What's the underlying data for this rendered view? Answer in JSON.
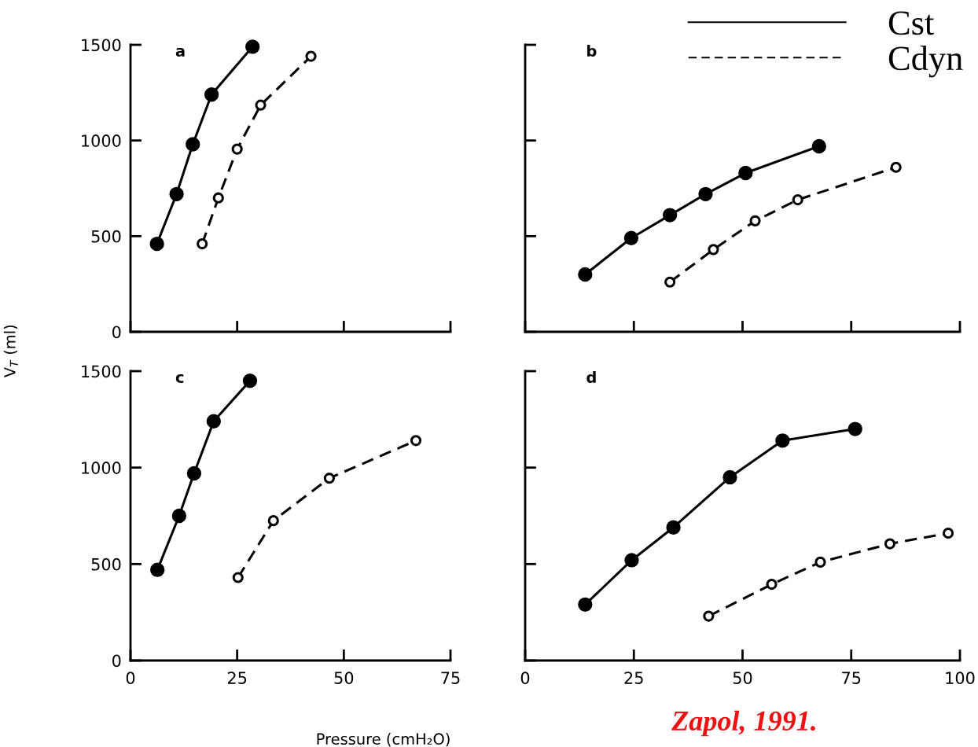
{
  "chart_data": [
    {
      "type": "line",
      "title": "a",
      "xlim": [
        0,
        75
      ],
      "xticks": [
        0,
        25,
        50,
        75
      ],
      "ylim": [
        0,
        1500
      ],
      "yticks": [
        0,
        500,
        1000,
        1500
      ],
      "tick_labels": "y",
      "marker": "circle",
      "series": [
        {
          "color": "#000000",
          "line_style": "solid",
          "x": [
            6.2,
            10.8,
            14.6,
            19.0,
            28.6
          ],
          "values": [
            460,
            720,
            980,
            1240,
            1490
          ]
        },
        {
          "color": "#000000",
          "line_style": "dashed",
          "x": [
            16.8,
            20.6,
            25.0,
            30.5,
            42.3
          ],
          "values": [
            460,
            700,
            955,
            1185,
            1440
          ]
        }
      ]
    },
    {
      "type": "line",
      "title": "b",
      "xlim": [
        0,
        100
      ],
      "xticks": [
        0,
        25,
        50,
        75,
        100
      ],
      "ylim": [
        0,
        1500
      ],
      "yticks": [
        0,
        500,
        1000,
        1500
      ],
      "tick_labels": false,
      "marker": "circle",
      "legend": "top right",
      "series": [
        {
          "name": "Cst",
          "color": "#000000",
          "line_style": "solid",
          "x": [
            13.8,
            24.4,
            33.3,
            41.5,
            50.7,
            67.6
          ],
          "values": [
            300,
            490,
            610,
            720,
            830,
            970
          ]
        },
        {
          "name": "Cdyn",
          "color": "#000000",
          "line_style": "dashed",
          "x": [
            33.3,
            43.3,
            52.9,
            62.7,
            85.3
          ],
          "values": [
            260,
            430,
            580,
            690,
            860
          ]
        }
      ]
    },
    {
      "type": "line",
      "title": "c",
      "ylabel": "V$_{T}$ (ml)",
      "xlabel": "Pressure (cmH₂O)",
      "xlim": [
        0,
        75
      ],
      "xticks": [
        0,
        25,
        50,
        75
      ],
      "ylim": [
        0,
        1500
      ],
      "yticks": [
        0,
        500,
        1000,
        1500
      ],
      "marker": "circle",
      "series": [
        {
          "color": "#000000",
          "line_style": "solid",
          "x": [
            6.3,
            11.4,
            14.9,
            19.5,
            28.0
          ],
          "values": [
            470,
            750,
            970,
            1240,
            1450
          ]
        },
        {
          "color": "#000000",
          "line_style": "dashed",
          "x": [
            25.2,
            33.5,
            46.6,
            66.9
          ],
          "values": [
            430,
            725,
            945,
            1140
          ]
        }
      ]
    },
    {
      "type": "line",
      "title": "d",
      "xlim": [
        0,
        100
      ],
      "xticks": [
        0,
        25,
        50,
        75,
        100
      ],
      "ylim": [
        0,
        1500
      ],
      "yticks": [
        0,
        500,
        1000,
        1500
      ],
      "tick_labels": "x",
      "marker": "circle",
      "annotations": [
        "Zapol, 1991."
      ],
      "series": [
        {
          "color": "#000000",
          "line_style": "solid",
          "x": [
            13.8,
            24.5,
            34.1,
            47.1,
            59.2,
            75.9
          ],
          "values": [
            290,
            520,
            690,
            950,
            1140,
            1200
          ]
        },
        {
          "color": "#000000",
          "line_style": "dashed",
          "x": [
            42.2,
            56.7,
            67.9,
            83.9,
            97.3
          ],
          "values": [
            230,
            395,
            510,
            605,
            660
          ]
        }
      ]
    }
  ]
}
